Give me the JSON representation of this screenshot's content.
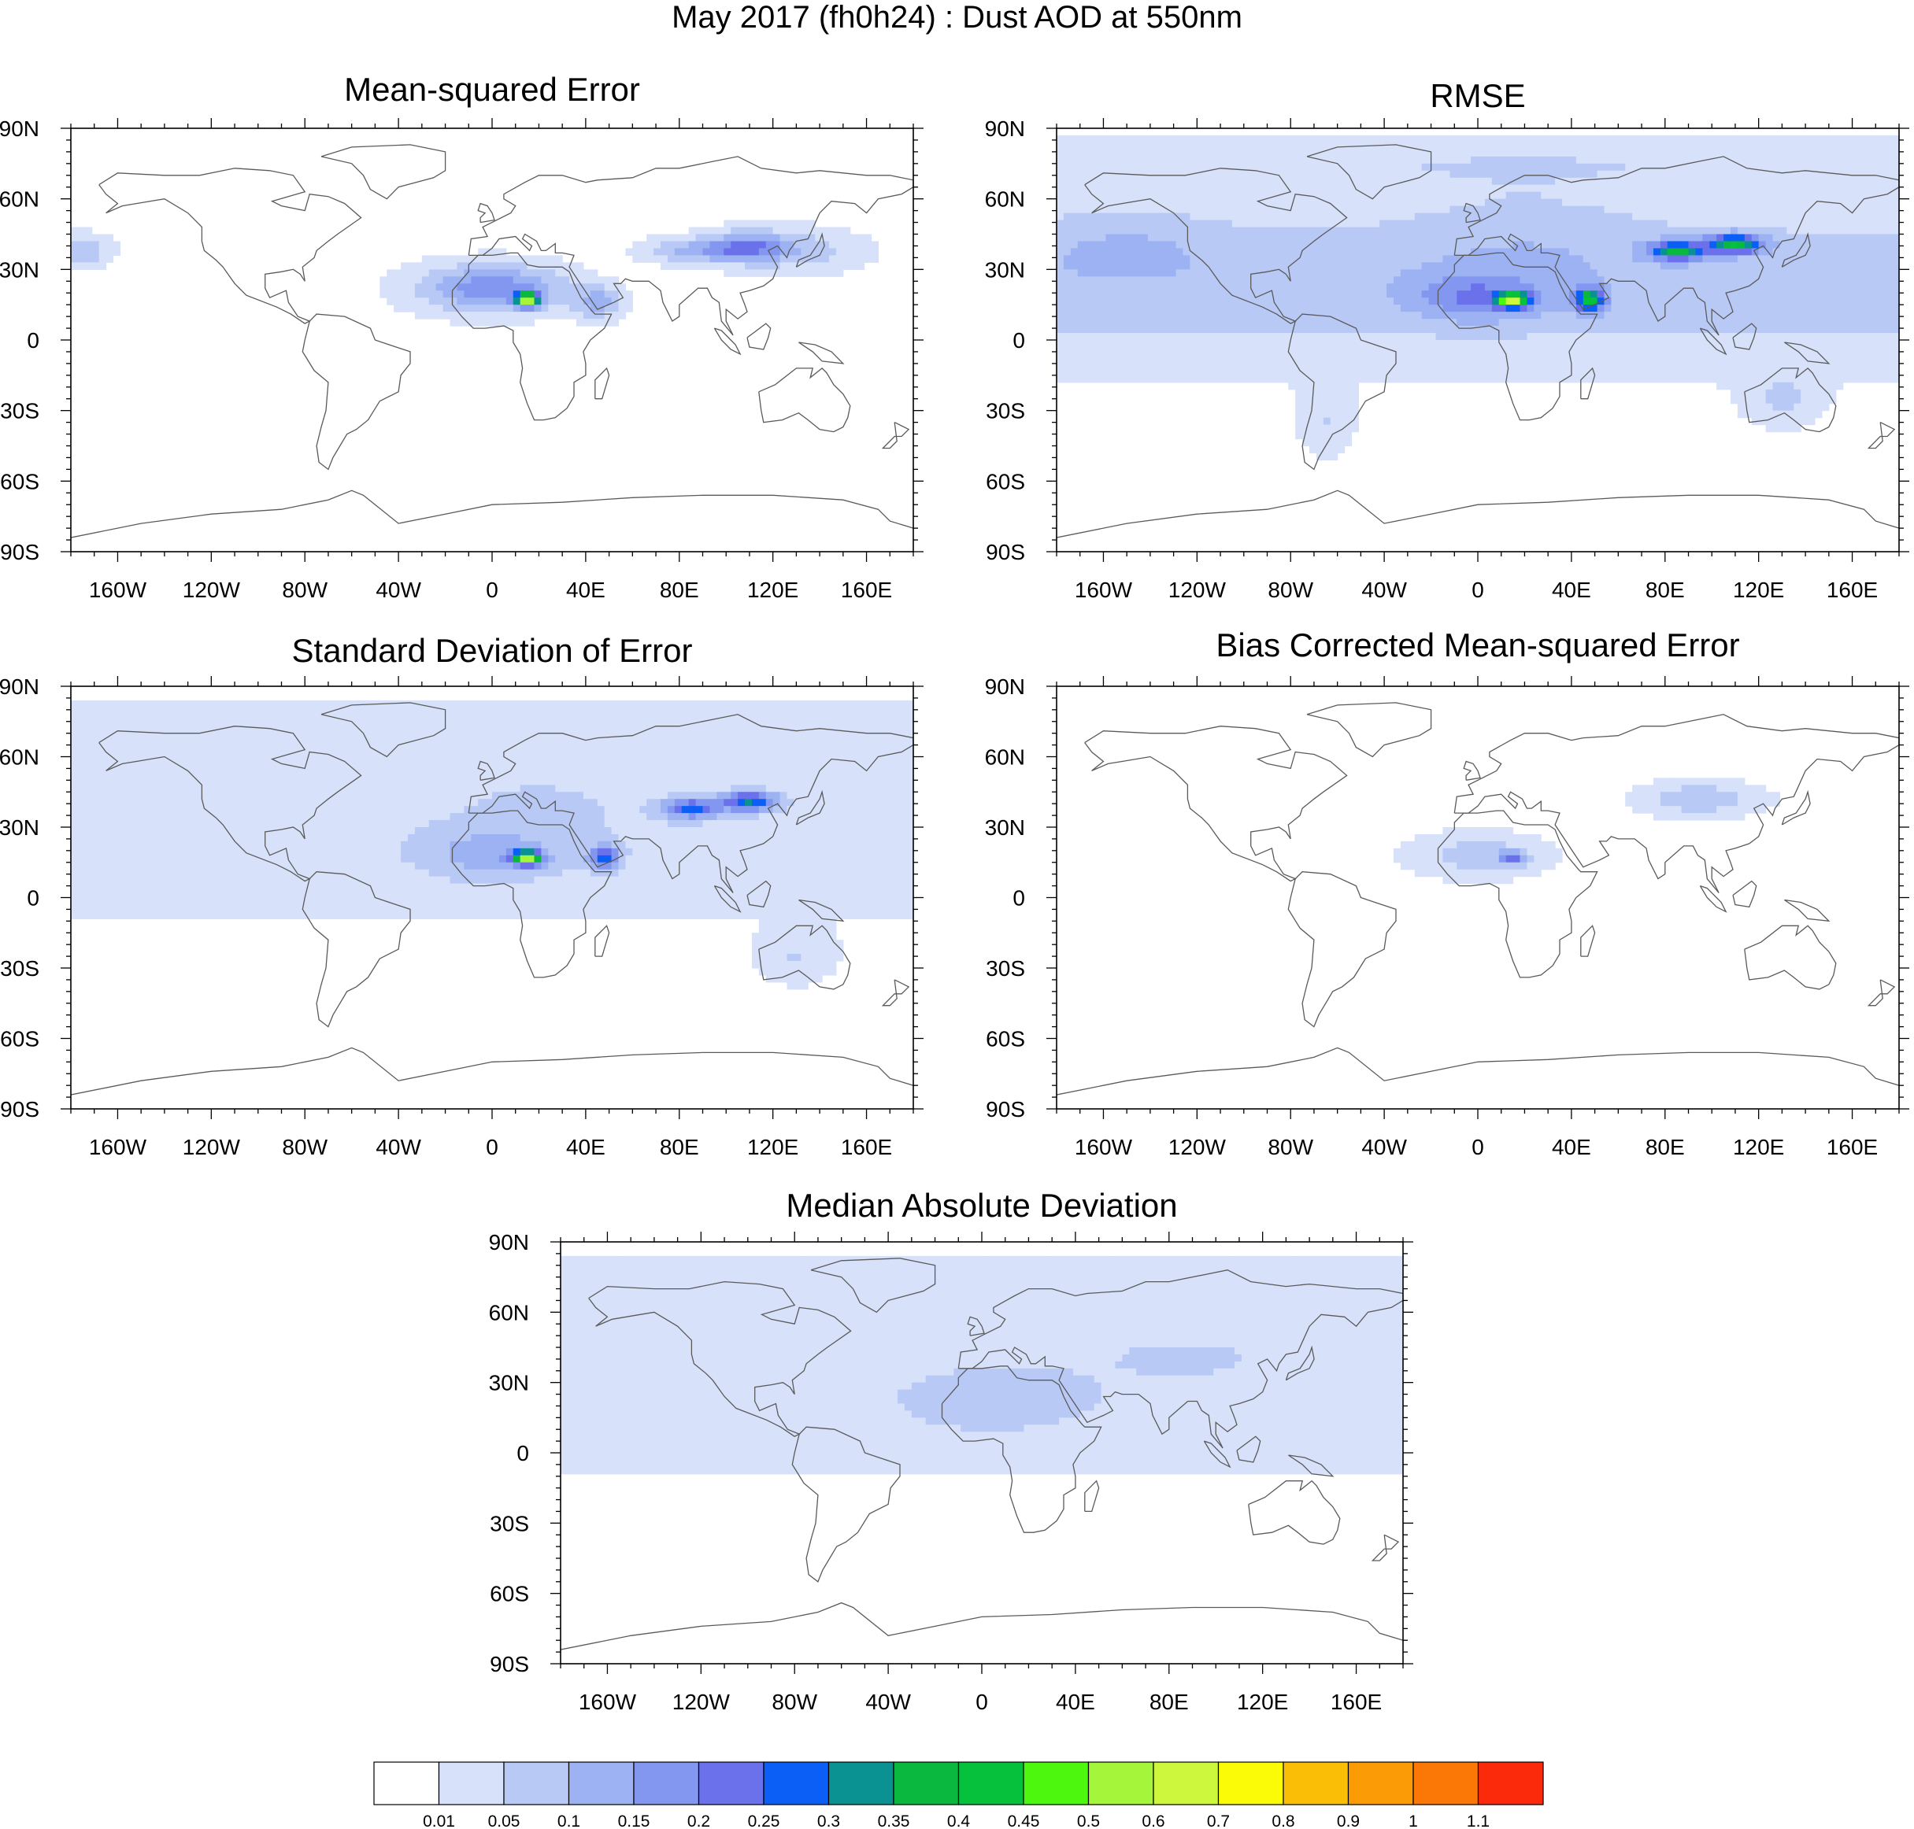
{
  "title": "May 2017 (fh0h24) : Dust AOD at 550nm",
  "lat_labels": [
    "90N",
    "60N",
    "30N",
    "0",
    "30S",
    "60S",
    "90S"
  ],
  "lon_labels": [
    "160W",
    "120W",
    "80W",
    "40W",
    "0",
    "40E",
    "80E",
    "120E",
    "160E"
  ],
  "lat_values": [
    90,
    60,
    30,
    0,
    -30,
    -60,
    -90
  ],
  "lon_values": [
    -160,
    -120,
    -80,
    -40,
    0,
    40,
    80,
    120,
    160
  ],
  "panels": [
    {
      "id": "mse",
      "title": "Mean-squared Error"
    },
    {
      "id": "rmse",
      "title": "RMSE"
    },
    {
      "id": "std",
      "title": "Standard Deviation of Error"
    },
    {
      "id": "bcmse",
      "title": "Bias Corrected Mean-squared Error"
    },
    {
      "id": "mad",
      "title": "Median Absolute Deviation"
    }
  ],
  "colorbar": {
    "labels": [
      "0.01",
      "0.05",
      "0.1",
      "0.15",
      "0.2",
      "0.25",
      "0.3",
      "0.35",
      "0.4",
      "0.45",
      "0.5",
      "0.6",
      "0.7",
      "0.8",
      "0.9",
      "1",
      "1.1"
    ],
    "colors": [
      "#ffffff",
      "#d7e1fa",
      "#b9c9f5",
      "#9cb2f3",
      "#8397f0",
      "#6a71ea",
      "#0b5ff7",
      "#0a9293",
      "#0ab83f",
      "#05c13c",
      "#4df70e",
      "#a5f53a",
      "#cdf73d",
      "#fbfb07",
      "#fbbe07",
      "#fb9c07",
      "#fb7807",
      "#fb2a0b"
    ]
  }
}
